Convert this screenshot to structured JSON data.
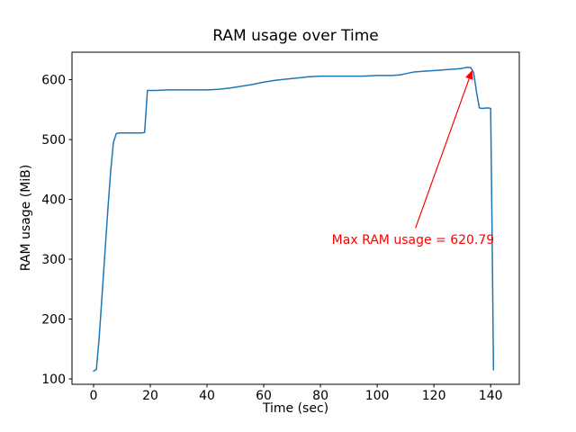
{
  "figure": {
    "background": "#ffffff"
  },
  "chart_data": {
    "type": "line",
    "title": "RAM usage over Time",
    "xlabel": "Time (sec)",
    "ylabel": "RAM usage (MiB)",
    "line_color": "#1f77b4",
    "axis_color": "#000000",
    "grid": false,
    "legend": null,
    "xlim": [
      -7.6,
      150.1
    ],
    "ylim": [
      91,
      646
    ],
    "xticks": [
      0,
      20,
      40,
      60,
      80,
      100,
      120,
      140
    ],
    "yticks": [
      100,
      200,
      300,
      400,
      500,
      600
    ],
    "x": [
      0,
      1,
      2,
      3,
      4,
      5,
      6,
      7,
      8,
      9,
      17,
      18,
      19,
      22,
      26,
      30,
      35,
      40,
      44,
      48,
      52,
      56,
      60,
      64,
      68,
      72,
      76,
      80,
      85,
      90,
      95,
      100,
      105,
      108,
      110,
      113,
      116,
      119,
      122,
      125,
      128,
      130,
      131,
      132,
      133,
      134,
      135,
      136,
      137,
      139,
      140,
      140.5,
      141
    ],
    "y": [
      113,
      116,
      170,
      240,
      310,
      380,
      445,
      495,
      510,
      511,
      511,
      512,
      582,
      582,
      583,
      583,
      583,
      583,
      584,
      586,
      589,
      592,
      596,
      599,
      601,
      603,
      605,
      606,
      606,
      606,
      606,
      607,
      607,
      608,
      610,
      613,
      614,
      615,
      616,
      617,
      618,
      619,
      620,
      620.79,
      620,
      612,
      580,
      553,
      552,
      553,
      552,
      350,
      115
    ],
    "max_value": 620.79,
    "annotation": {
      "text": "Max RAM usage = 620.79",
      "color": "#ff0000",
      "text_pos": [
        84,
        322
      ],
      "arrow_start": [
        113.5,
        352
      ],
      "arrow_end": [
        133.5,
        616
      ]
    }
  }
}
